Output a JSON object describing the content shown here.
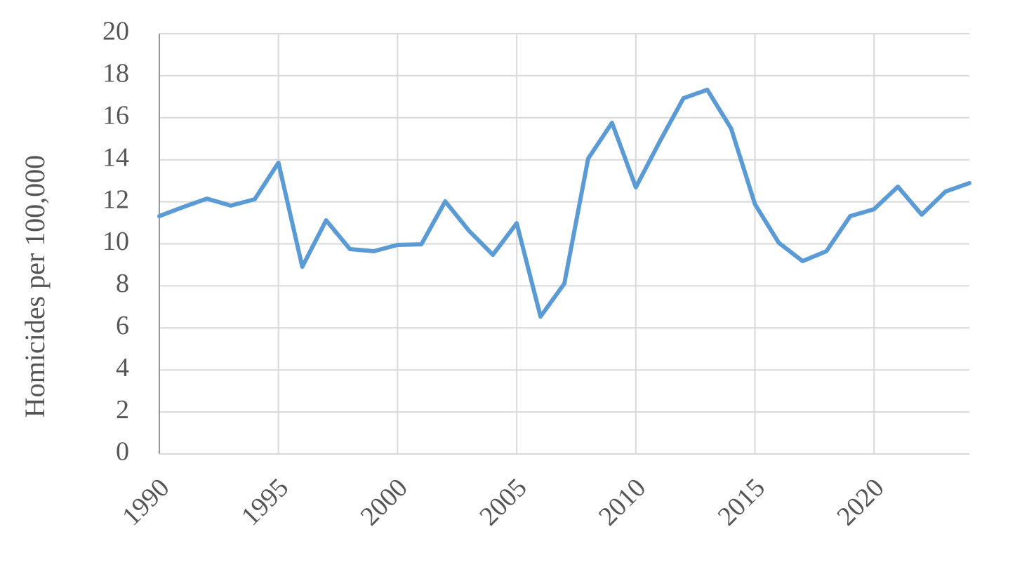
{
  "chart_data": {
    "type": "line",
    "y_label": "Homicides per 100,000",
    "x": [
      1990,
      1991,
      1992,
      1993,
      1994,
      1995,
      1996,
      1997,
      1998,
      1999,
      2000,
      2001,
      2002,
      2003,
      2004,
      2005,
      2006,
      2007,
      2008,
      2009,
      2010,
      2011,
      2012,
      2013,
      2014,
      2015,
      2016,
      2017,
      2018,
      2019,
      2020,
      2021,
      2022,
      2023,
      2024
    ],
    "values": [
      11.32,
      11.75,
      12.15,
      11.82,
      12.12,
      13.86,
      8.91,
      11.12,
      9.75,
      9.65,
      9.95,
      9.98,
      12.02,
      10.62,
      9.48,
      10.98,
      6.54,
      8.11,
      14.06,
      15.76,
      12.69,
      14.86,
      16.93,
      17.33,
      15.49,
      11.89,
      10.05,
      9.18,
      9.65,
      11.32,
      11.65,
      12.72,
      11.39,
      12.49,
      12.89
    ],
    "color": "#5b9bd5",
    "xlim": [
      1990,
      2024
    ],
    "xticks": [
      1990,
      1995,
      2000,
      2005,
      2010,
      2015,
      2020
    ],
    "ylim": [
      0,
      20
    ],
    "yticks": [
      0,
      2,
      4,
      6,
      8,
      10,
      12,
      14,
      16,
      18,
      20
    ],
    "grid": true
  }
}
